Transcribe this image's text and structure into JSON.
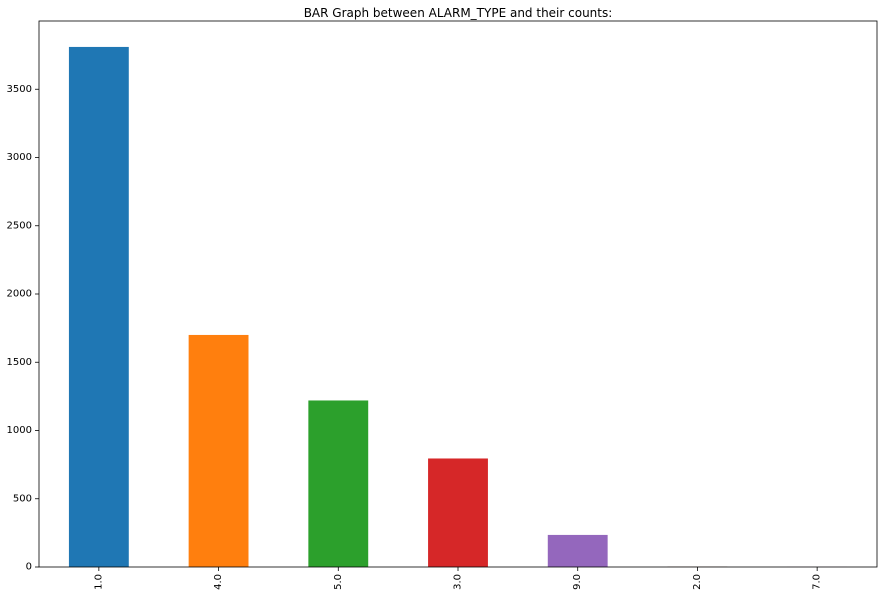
{
  "chart_data": {
    "type": "bar",
    "title": "BAR Graph between ALARM_TYPE and their counts:",
    "xlabel": "",
    "ylabel": "",
    "categories": [
      "1.0",
      "4.0",
      "5.0",
      "3.0",
      "9.0",
      "2.0",
      "7.0"
    ],
    "values": [
      3810,
      1700,
      1220,
      795,
      235,
      2,
      1
    ],
    "colors": [
      "#1f77b4",
      "#ff7f0e",
      "#2ca02c",
      "#d62728",
      "#9467bd",
      "#8c564b",
      "#e377c2"
    ],
    "ylim": [
      0,
      4000
    ],
    "yticks": [
      0,
      500,
      1000,
      1500,
      2000,
      2500,
      3000,
      3500
    ],
    "grid": false,
    "legend": "none"
  }
}
